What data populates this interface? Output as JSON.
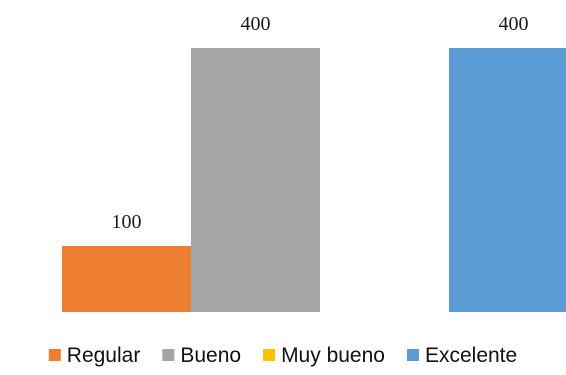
{
  "chart_data": {
    "type": "bar",
    "title": "",
    "xlabel": "",
    "ylabel": "",
    "ylim": [
      0,
      400
    ],
    "grid": false,
    "legend_position": "bottom",
    "categories": [
      ""
    ],
    "series": [
      {
        "name": "Regular",
        "values": [
          100
        ],
        "color": "#ED7D31",
        "label": "100"
      },
      {
        "name": "Bueno",
        "values": [
          400
        ],
        "color": "#A5A5A5",
        "label": "400"
      },
      {
        "name": "Muy bueno",
        "values": [
          0
        ],
        "color": "#FFC000",
        "label": ""
      },
      {
        "name": "Excelente",
        "values": [
          400
        ],
        "color": "#5B9BD5",
        "label": "400"
      }
    ]
  }
}
